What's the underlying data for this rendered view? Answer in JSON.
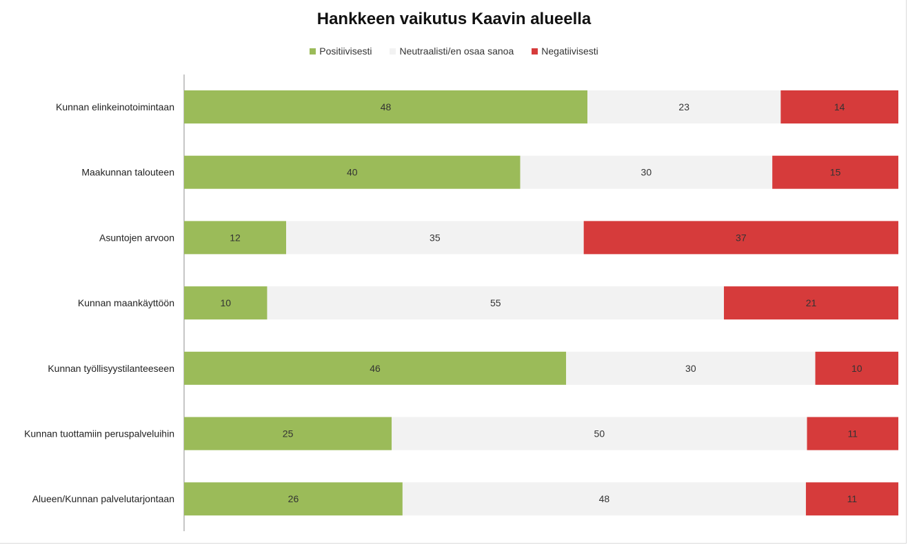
{
  "chart_data": {
    "type": "bar",
    "orientation": "horizontal",
    "stacked": true,
    "title": "Hankkeen vaikutus Kaavin alueella",
    "legend_position": "top",
    "categories": [
      "Kunnan elinkeinotoimintaan",
      "Maakunnan talouteen",
      "Asuntojen arvoon",
      "Kunnan maankäyttöön",
      "Kunnan työllisyystilanteeseen",
      "Kunnan tuottamiin peruspalveluihin",
      "Alueen/Kunnan palvelutarjontaan"
    ],
    "series": [
      {
        "name": "Positiivisesti",
        "color": "#9bbb59",
        "values": [
          48,
          40,
          12,
          10,
          46,
          25,
          26
        ]
      },
      {
        "name": "Neutraalisti/en osaa sanoa",
        "color": "#f2f2f2",
        "values": [
          23,
          30,
          35,
          55,
          30,
          50,
          48
        ]
      },
      {
        "name": "Negatiivisesti",
        "color": "#d63b3b",
        "values": [
          14,
          15,
          37,
          21,
          10,
          11,
          11
        ]
      }
    ],
    "grid": false
  }
}
